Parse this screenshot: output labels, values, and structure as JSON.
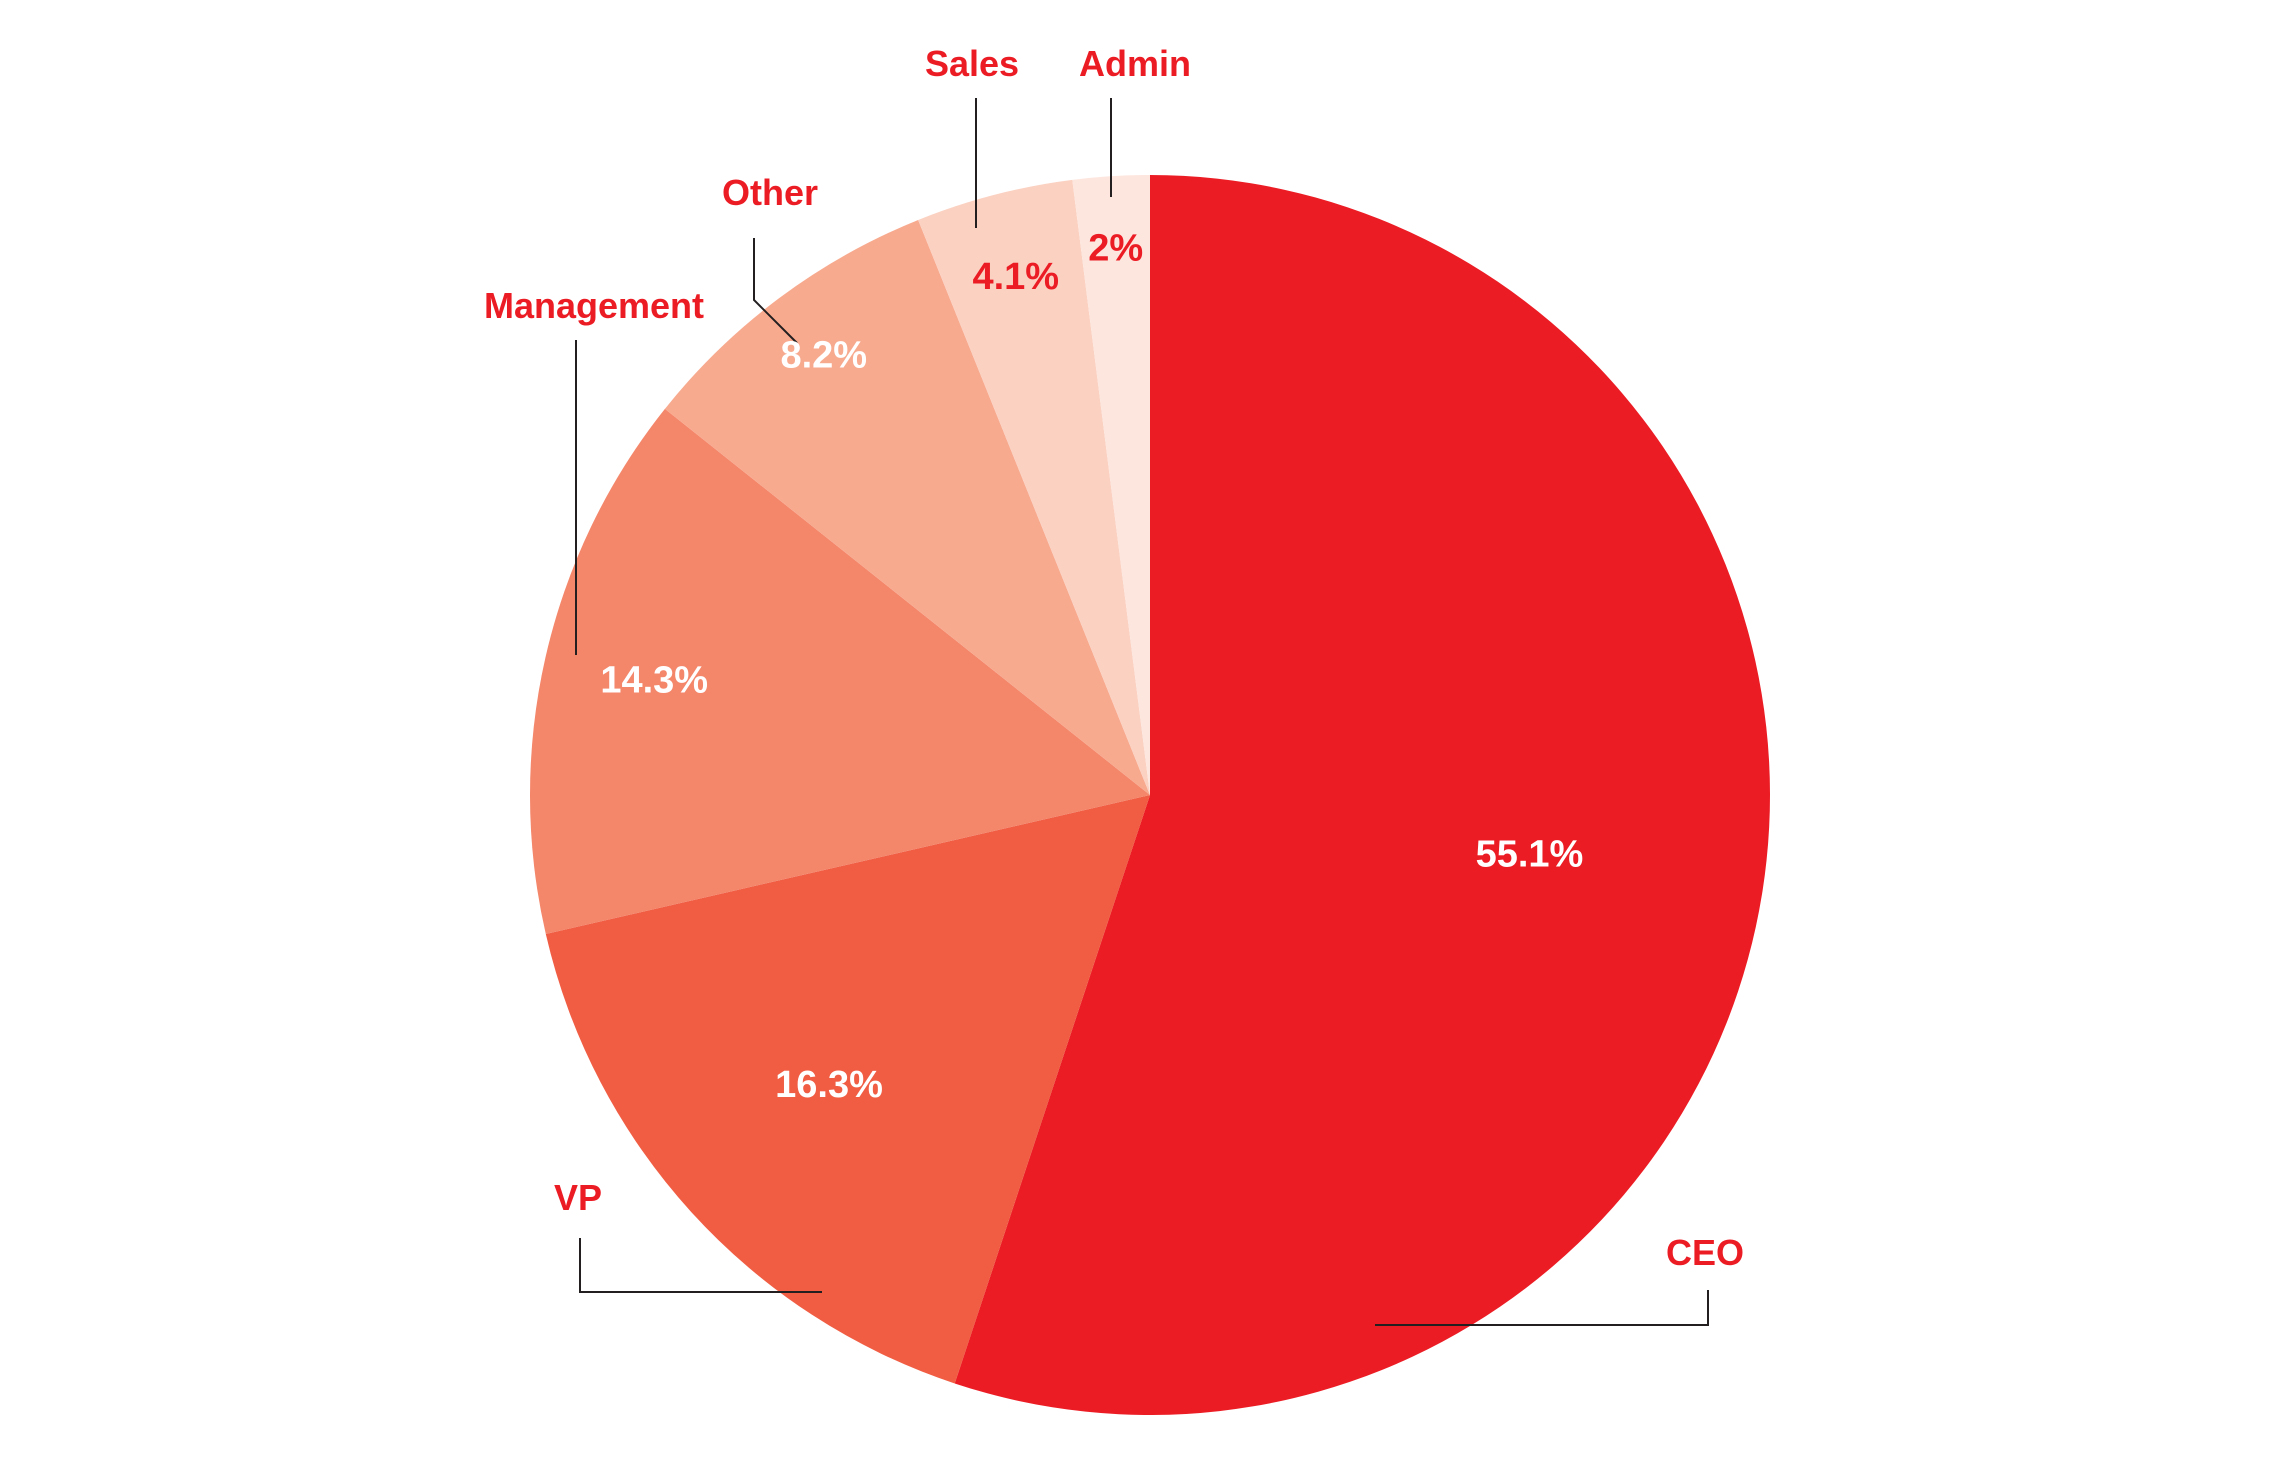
{
  "chart_data": {
    "type": "pie",
    "title": "",
    "slices": [
      {
        "label": "CEO",
        "value": 55.1,
        "value_label": "55.1%",
        "color": "#ec1c24",
        "value_text_color": "#ffffff"
      },
      {
        "label": "VP",
        "value": 16.3,
        "value_label": "16.3%",
        "color": "#f05d43",
        "value_text_color": "#ffffff"
      },
      {
        "label": "Management",
        "value": 14.3,
        "value_label": "14.3%",
        "color": "#f4866a",
        "value_text_color": "#ffffff"
      },
      {
        "label": "Other",
        "value": 8.2,
        "value_label": "8.2%",
        "color": "#f8aa8f",
        "value_text_color": "#ffffff"
      },
      {
        "label": "Sales",
        "value": 4.1,
        "value_label": "4.1%",
        "color": "#fbd1c2",
        "value_text_color": "#ec1c24"
      },
      {
        "label": "Admin",
        "value": 2,
        "value_label": "2%",
        "color": "#fde6de",
        "value_text_color": "#ec1c24"
      }
    ],
    "start_angle": "12 o'clock",
    "direction": "clockwise",
    "label_color": "#ec1c24",
    "leader_line_color": "#231f20",
    "legend": "none"
  }
}
